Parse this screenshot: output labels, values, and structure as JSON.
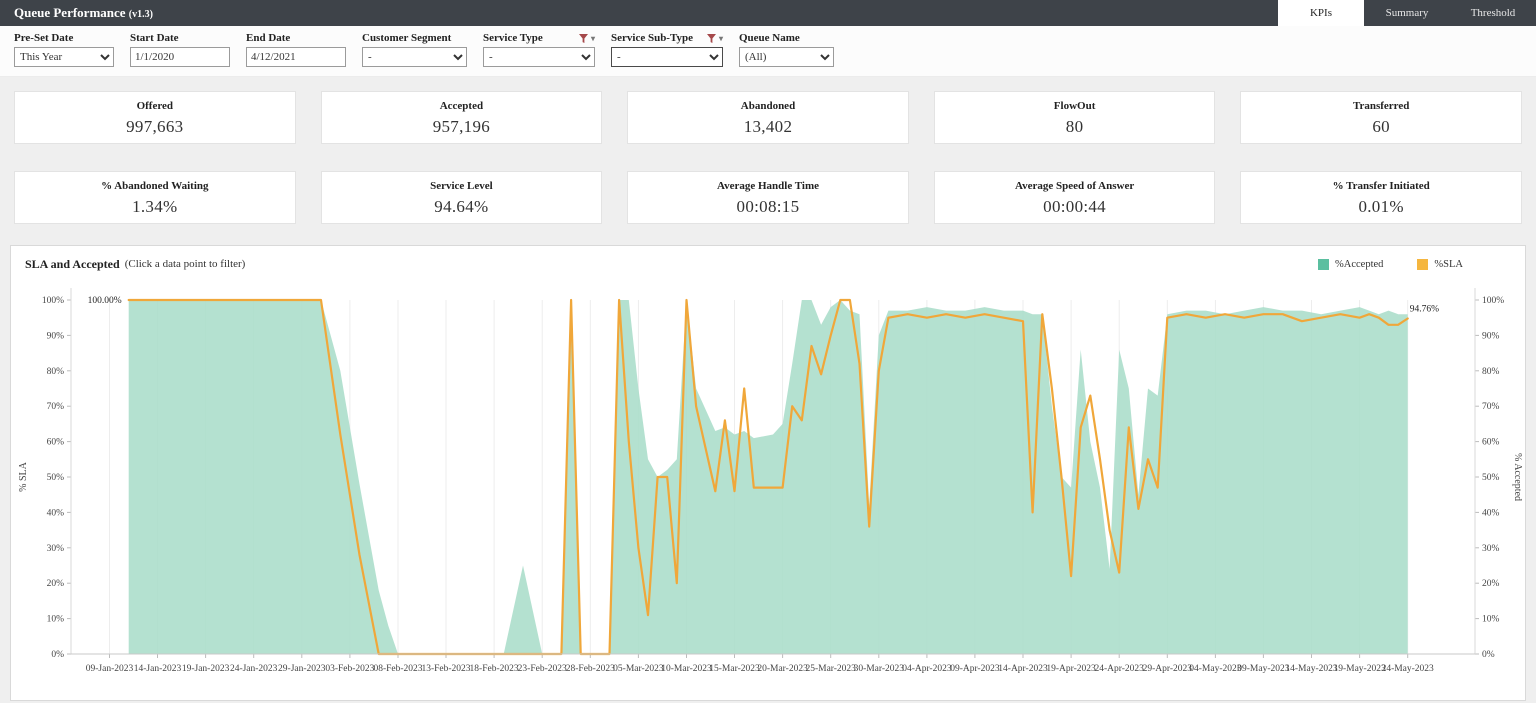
{
  "header": {
    "title": "Queue Performance",
    "version": "(v1.3)"
  },
  "tabs": [
    {
      "label": "KPIs",
      "active": true
    },
    {
      "label": "Summary",
      "active": false
    },
    {
      "label": "Threshold",
      "active": false
    }
  ],
  "filters": {
    "preset": {
      "label": "Pre-Set Date",
      "value": "This Year"
    },
    "start": {
      "label": "Start Date",
      "value": "1/1/2020"
    },
    "end": {
      "label": "End Date",
      "value": "4/12/2021"
    },
    "segment": {
      "label": "Customer Segment",
      "value": "-"
    },
    "service_type": {
      "label": "Service Type",
      "value": "-"
    },
    "service_subtype": {
      "label": "Service Sub-Type",
      "value": "-"
    },
    "queue": {
      "label": "Queue Name",
      "value": "(All)"
    }
  },
  "kpis": {
    "row1": [
      {
        "label": "Offered",
        "value": "997,663"
      },
      {
        "label": "Accepted",
        "value": "957,196"
      },
      {
        "label": "Abandoned",
        "value": "13,402"
      },
      {
        "label": "FlowOut",
        "value": "80"
      },
      {
        "label": "Transferred",
        "value": "60"
      }
    ],
    "row2": [
      {
        "label": "% Abandoned Waiting",
        "value": "1.34%"
      },
      {
        "label": "Service Level",
        "value": "94.64%"
      },
      {
        "label": "Average Handle Time",
        "value": "00:08:15"
      },
      {
        "label": "Average Speed of Answer",
        "value": "00:00:44"
      },
      {
        "label": "% Transfer Initiated",
        "value": "0.01%"
      }
    ]
  },
  "chart": {
    "title": "SLA and Accepted",
    "subtitle": "(Click a data point to filter)",
    "y_left_title": "% SLA",
    "y_right_title": "% Accepted",
    "legend": [
      {
        "label": "%Accepted",
        "color": "#5bbfa0"
      },
      {
        "label": "%SLA",
        "color": "#f5b63f"
      }
    ]
  },
  "chart_data": {
    "type": "area",
    "x_domain": [
      "05-Jan-2023",
      "31-May-2023"
    ],
    "x_ticks": [
      "09-Jan-2023",
      "14-Jan-2023",
      "19-Jan-2023",
      "24-Jan-2023",
      "29-Jan-2023",
      "03-Feb-2023",
      "08-Feb-2023",
      "13-Feb-2023",
      "18-Feb-2023",
      "23-Feb-2023",
      "28-Feb-2023",
      "05-Mar-2023",
      "10-Mar-2023",
      "15-Mar-2023",
      "20-Mar-2023",
      "25-Mar-2023",
      "30-Mar-2023",
      "04-Apr-2023",
      "09-Apr-2023",
      "14-Apr-2023",
      "19-Apr-2023",
      "24-Apr-2023",
      "29-Apr-2023",
      "04-May-2023",
      "09-May-2023",
      "14-May-2023",
      "19-May-2023",
      "24-May-2023"
    ],
    "y_ticks": [
      0,
      10,
      20,
      30,
      40,
      50,
      60,
      70,
      80,
      90,
      100
    ],
    "ylim": [
      0,
      100
    ],
    "series": [
      {
        "name": "%Accepted",
        "type": "area",
        "color": "#aaddc9"
      },
      {
        "name": "%SLA",
        "type": "line",
        "color": "#f0a73a"
      }
    ],
    "annotations": {
      "start": "100.00%",
      "end": "94.76%"
    },
    "points": [
      {
        "d": "11-Jan-2023",
        "sla": 100,
        "acc": 100
      },
      {
        "d": "14-Jan-2023",
        "sla": 100,
        "acc": 100
      },
      {
        "d": "17-Jan-2023",
        "sla": 100,
        "acc": 100
      },
      {
        "d": "20-Jan-2023",
        "sla": 100,
        "acc": 100
      },
      {
        "d": "23-Jan-2023",
        "sla": 100,
        "acc": 100
      },
      {
        "d": "26-Jan-2023",
        "sla": 100,
        "acc": 100
      },
      {
        "d": "29-Jan-2023",
        "sla": 100,
        "acc": 100
      },
      {
        "d": "31-Jan-2023",
        "sla": 100,
        "acc": 100
      },
      {
        "d": "02-Feb-2023",
        "sla": 62,
        "acc": 80
      },
      {
        "d": "04-Feb-2023",
        "sla": 28,
        "acc": 48
      },
      {
        "d": "06-Feb-2023",
        "sla": 0,
        "acc": 18
      },
      {
        "d": "07-Feb-2023",
        "sla": 0,
        "acc": 8
      },
      {
        "d": "08-Feb-2023",
        "sla": 0,
        "acc": 0
      },
      {
        "d": "11-Feb-2023",
        "sla": 0,
        "acc": 0
      },
      {
        "d": "14-Feb-2023",
        "sla": 0,
        "acc": 0
      },
      {
        "d": "17-Feb-2023",
        "sla": 0,
        "acc": 0
      },
      {
        "d": "19-Feb-2023",
        "sla": 0,
        "acc": 0
      },
      {
        "d": "21-Feb-2023",
        "sla": 0,
        "acc": 25
      },
      {
        "d": "23-Feb-2023",
        "sla": 0,
        "acc": 0
      },
      {
        "d": "25-Feb-2023",
        "sla": 0,
        "acc": 0
      },
      {
        "d": "26-Feb-2023",
        "sla": 100,
        "acc": 100
      },
      {
        "d": "27-Feb-2023",
        "sla": 0,
        "acc": 0
      },
      {
        "d": "01-Mar-2023",
        "sla": 0,
        "acc": 0
      },
      {
        "d": "02-Mar-2023",
        "sla": 0,
        "acc": 0
      },
      {
        "d": "03-Mar-2023",
        "sla": 100,
        "acc": 100
      },
      {
        "d": "04-Mar-2023",
        "sla": 60,
        "acc": 100
      },
      {
        "d": "05-Mar-2023",
        "sla": 30,
        "acc": 75
      },
      {
        "d": "06-Mar-2023",
        "sla": 11,
        "acc": 55
      },
      {
        "d": "07-Mar-2023",
        "sla": 50,
        "acc": 50
      },
      {
        "d": "08-Mar-2023",
        "sla": 50,
        "acc": 52
      },
      {
        "d": "09-Mar-2023",
        "sla": 20,
        "acc": 55
      },
      {
        "d": "10-Mar-2023",
        "sla": 100,
        "acc": 100
      },
      {
        "d": "11-Mar-2023",
        "sla": 70,
        "acc": 75
      },
      {
        "d": "13-Mar-2023",
        "sla": 46,
        "acc": 63
      },
      {
        "d": "14-Mar-2023",
        "sla": 66,
        "acc": 64
      },
      {
        "d": "15-Mar-2023",
        "sla": 46,
        "acc": 62
      },
      {
        "d": "16-Mar-2023",
        "sla": 75,
        "acc": 63
      },
      {
        "d": "17-Mar-2023",
        "sla": 47,
        "acc": 61
      },
      {
        "d": "19-Mar-2023",
        "sla": 47,
        "acc": 62
      },
      {
        "d": "20-Mar-2023",
        "sla": 47,
        "acc": 65
      },
      {
        "d": "21-Mar-2023",
        "sla": 70,
        "acc": 82
      },
      {
        "d": "22-Mar-2023",
        "sla": 66,
        "acc": 100
      },
      {
        "d": "23-Mar-2023",
        "sla": 87,
        "acc": 100
      },
      {
        "d": "24-Mar-2023",
        "sla": 79,
        "acc": 93
      },
      {
        "d": "25-Mar-2023",
        "sla": 90,
        "acc": 98
      },
      {
        "d": "26-Mar-2023",
        "sla": 100,
        "acc": 100
      },
      {
        "d": "27-Mar-2023",
        "sla": 100,
        "acc": 97
      },
      {
        "d": "28-Mar-2023",
        "sla": 82,
        "acc": 96
      },
      {
        "d": "29-Mar-2023",
        "sla": 36,
        "acc": 42
      },
      {
        "d": "30-Mar-2023",
        "sla": 80,
        "acc": 90
      },
      {
        "d": "31-Mar-2023",
        "sla": 95,
        "acc": 97
      },
      {
        "d": "02-Apr-2023",
        "sla": 96,
        "acc": 97
      },
      {
        "d": "04-Apr-2023",
        "sla": 95,
        "acc": 98
      },
      {
        "d": "06-Apr-2023",
        "sla": 96,
        "acc": 97
      },
      {
        "d": "08-Apr-2023",
        "sla": 95,
        "acc": 97
      },
      {
        "d": "10-Apr-2023",
        "sla": 96,
        "acc": 98
      },
      {
        "d": "12-Apr-2023",
        "sla": 95,
        "acc": 97
      },
      {
        "d": "14-Apr-2023",
        "sla": 94,
        "acc": 97
      },
      {
        "d": "15-Apr-2023",
        "sla": 40,
        "acc": 96
      },
      {
        "d": "16-Apr-2023",
        "sla": 96,
        "acc": 96
      },
      {
        "d": "17-Apr-2023",
        "sla": 75,
        "acc": 70
      },
      {
        "d": "18-Apr-2023",
        "sla": 50,
        "acc": 50
      },
      {
        "d": "19-Apr-2023",
        "sla": 22,
        "acc": 47
      },
      {
        "d": "20-Apr-2023",
        "sla": 64,
        "acc": 86
      },
      {
        "d": "21-Apr-2023",
        "sla": 73,
        "acc": 60
      },
      {
        "d": "22-Apr-2023",
        "sla": 55,
        "acc": 47
      },
      {
        "d": "23-Apr-2023",
        "sla": 35,
        "acc": 24
      },
      {
        "d": "24-Apr-2023",
        "sla": 23,
        "acc": 86
      },
      {
        "d": "25-Apr-2023",
        "sla": 64,
        "acc": 75
      },
      {
        "d": "26-Apr-2023",
        "sla": 41,
        "acc": 45
      },
      {
        "d": "27-Apr-2023",
        "sla": 55,
        "acc": 75
      },
      {
        "d": "28-Apr-2023",
        "sla": 47,
        "acc": 73
      },
      {
        "d": "29-Apr-2023",
        "sla": 95,
        "acc": 96
      },
      {
        "d": "01-May-2023",
        "sla": 96,
        "acc": 97
      },
      {
        "d": "03-May-2023",
        "sla": 95,
        "acc": 97
      },
      {
        "d": "05-May-2023",
        "sla": 96,
        "acc": 96
      },
      {
        "d": "07-May-2023",
        "sla": 95,
        "acc": 97
      },
      {
        "d": "09-May-2023",
        "sla": 96,
        "acc": 98
      },
      {
        "d": "11-May-2023",
        "sla": 96,
        "acc": 97
      },
      {
        "d": "13-May-2023",
        "sla": 94,
        "acc": 97
      },
      {
        "d": "15-May-2023",
        "sla": 95,
        "acc": 96
      },
      {
        "d": "17-May-2023",
        "sla": 96,
        "acc": 97
      },
      {
        "d": "19-May-2023",
        "sla": 95,
        "acc": 98
      },
      {
        "d": "20-May-2023",
        "sla": 96,
        "acc": 97
      },
      {
        "d": "21-May-2023",
        "sla": 95,
        "acc": 96
      },
      {
        "d": "22-May-2023",
        "sla": 93,
        "acc": 97
      },
      {
        "d": "23-May-2023",
        "sla": 93,
        "acc": 96
      },
      {
        "d": "24-May-2023",
        "sla": 94.76,
        "acc": 96
      }
    ]
  }
}
